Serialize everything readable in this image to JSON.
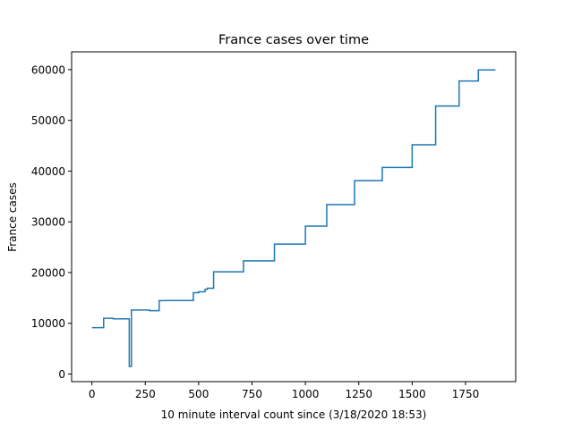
{
  "chart_data": {
    "type": "line",
    "title": "France cases over time",
    "xlabel": "10 minute interval count since (3/18/2020 18:53)",
    "ylabel": "France cases",
    "xlim": [
      -95,
      1985
    ],
    "ylim": [
      -1500,
      63500
    ],
    "xticks": [
      0,
      250,
      500,
      750,
      1000,
      1250,
      1500,
      1750
    ],
    "yticks": [
      0,
      10000,
      20000,
      30000,
      40000,
      50000,
      60000
    ],
    "grid": false,
    "line_color": "#1f77b4",
    "series": [
      {
        "name": "",
        "points": [
          [
            0,
            9134
          ],
          [
            55,
            9134
          ],
          [
            55,
            10995
          ],
          [
            100,
            10995
          ],
          [
            100,
            10877
          ],
          [
            175,
            10877
          ],
          [
            175,
            1500
          ],
          [
            185,
            1500
          ],
          [
            185,
            12612
          ],
          [
            270,
            12612
          ],
          [
            270,
            12475
          ],
          [
            315,
            12475
          ],
          [
            315,
            14459
          ],
          [
            345,
            14459
          ],
          [
            345,
            14485
          ],
          [
            475,
            14485
          ],
          [
            475,
            16018
          ],
          [
            500,
            16018
          ],
          [
            500,
            16200
          ],
          [
            530,
            16200
          ],
          [
            530,
            16689
          ],
          [
            540,
            16689
          ],
          [
            540,
            16900
          ],
          [
            570,
            16900
          ],
          [
            570,
            20149
          ],
          [
            710,
            20149
          ],
          [
            710,
            22304
          ],
          [
            855,
            22304
          ],
          [
            855,
            25600
          ],
          [
            1000,
            25600
          ],
          [
            1000,
            29155
          ],
          [
            1100,
            29155
          ],
          [
            1100,
            33402
          ],
          [
            1230,
            33402
          ],
          [
            1230,
            38105
          ],
          [
            1360,
            38105
          ],
          [
            1360,
            40708
          ],
          [
            1500,
            40708
          ],
          [
            1500,
            45170
          ],
          [
            1610,
            45170
          ],
          [
            1610,
            52827
          ],
          [
            1720,
            52827
          ],
          [
            1720,
            57749
          ],
          [
            1810,
            57749
          ],
          [
            1810,
            59929
          ],
          [
            1890,
            59929
          ]
        ]
      }
    ]
  }
}
